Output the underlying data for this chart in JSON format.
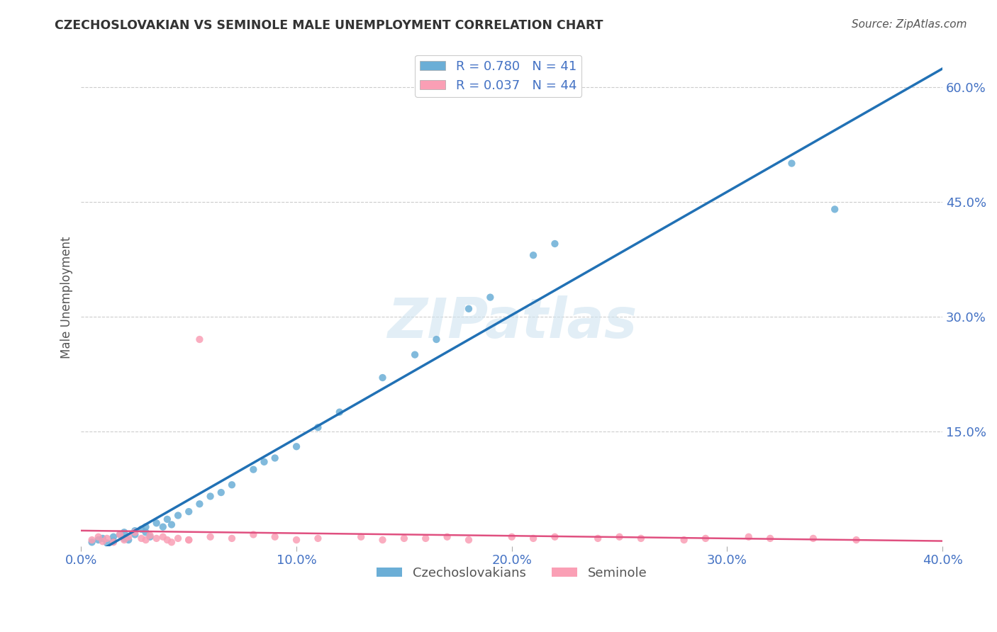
{
  "title": "CZECHOSLOVAKIAN VS SEMINOLE MALE UNEMPLOYMENT CORRELATION CHART",
  "source": "Source: ZipAtlas.com",
  "ylabel": "Male Unemployment",
  "xlim": [
    0.0,
    0.4
  ],
  "ylim": [
    0.0,
    0.65
  ],
  "yticks": [
    0.0,
    0.15,
    0.3,
    0.45,
    0.6
  ],
  "ytick_labels": [
    "",
    "15.0%",
    "30.0%",
    "45.0%",
    "60.0%"
  ],
  "xticks": [
    0.0,
    0.1,
    0.2,
    0.3,
    0.4
  ],
  "xtick_labels": [
    "0.0%",
    "10.0%",
    "20.0%",
    "30.0%",
    "40.0%"
  ],
  "legend_labels": [
    "Czechoslovakians",
    "Seminole"
  ],
  "R_czech": 0.78,
  "N_czech": 41,
  "R_seminole": 0.037,
  "N_seminole": 44,
  "blue_color": "#6baed6",
  "blue_line_color": "#2171b5",
  "pink_color": "#fa9fb5",
  "pink_line_color": "#e05080",
  "background_color": "#ffffff",
  "grid_color": "#cccccc",
  "title_color": "#333333",
  "axis_label_color": "#4472c4",
  "watermark": "ZIPatlas",
  "czech_x": [
    0.005,
    0.008,
    0.01,
    0.012,
    0.015,
    0.015,
    0.018,
    0.02,
    0.02,
    0.022,
    0.025,
    0.025,
    0.028,
    0.03,
    0.03,
    0.032,
    0.035,
    0.038,
    0.04,
    0.042,
    0.045,
    0.05,
    0.055,
    0.06,
    0.065,
    0.07,
    0.08,
    0.085,
    0.09,
    0.1,
    0.11,
    0.12,
    0.14,
    0.155,
    0.165,
    0.18,
    0.19,
    0.21,
    0.22,
    0.33,
    0.35
  ],
  "czech_y": [
    0.005,
    0.008,
    0.01,
    0.004,
    0.012,
    0.006,
    0.015,
    0.01,
    0.018,
    0.008,
    0.02,
    0.015,
    0.022,
    0.018,
    0.025,
    0.012,
    0.03,
    0.025,
    0.035,
    0.028,
    0.04,
    0.045,
    0.055,
    0.065,
    0.07,
    0.08,
    0.1,
    0.11,
    0.115,
    0.13,
    0.155,
    0.175,
    0.22,
    0.25,
    0.27,
    0.31,
    0.325,
    0.38,
    0.395,
    0.5,
    0.44
  ],
  "seminole_x": [
    0.005,
    0.008,
    0.01,
    0.012,
    0.015,
    0.018,
    0.02,
    0.022,
    0.025,
    0.028,
    0.03,
    0.032,
    0.035,
    0.038,
    0.04,
    0.042,
    0.045,
    0.05,
    0.055,
    0.06,
    0.05,
    0.07,
    0.08,
    0.09,
    0.1,
    0.11,
    0.13,
    0.14,
    0.15,
    0.16,
    0.17,
    0.18,
    0.2,
    0.21,
    0.22,
    0.24,
    0.25,
    0.26,
    0.28,
    0.29,
    0.31,
    0.32,
    0.34,
    0.36
  ],
  "seminole_y": [
    0.008,
    0.012,
    0.006,
    0.01,
    0.005,
    0.015,
    0.008,
    0.012,
    0.018,
    0.01,
    0.008,
    0.014,
    0.01,
    0.012,
    0.008,
    0.005,
    0.01,
    0.008,
    0.27,
    0.012,
    0.008,
    0.01,
    0.015,
    0.012,
    0.008,
    0.01,
    0.012,
    0.008,
    0.01,
    0.01,
    0.012,
    0.008,
    0.012,
    0.01,
    0.012,
    0.01,
    0.012,
    0.01,
    0.008,
    0.01,
    0.012,
    0.01,
    0.01,
    0.008
  ]
}
